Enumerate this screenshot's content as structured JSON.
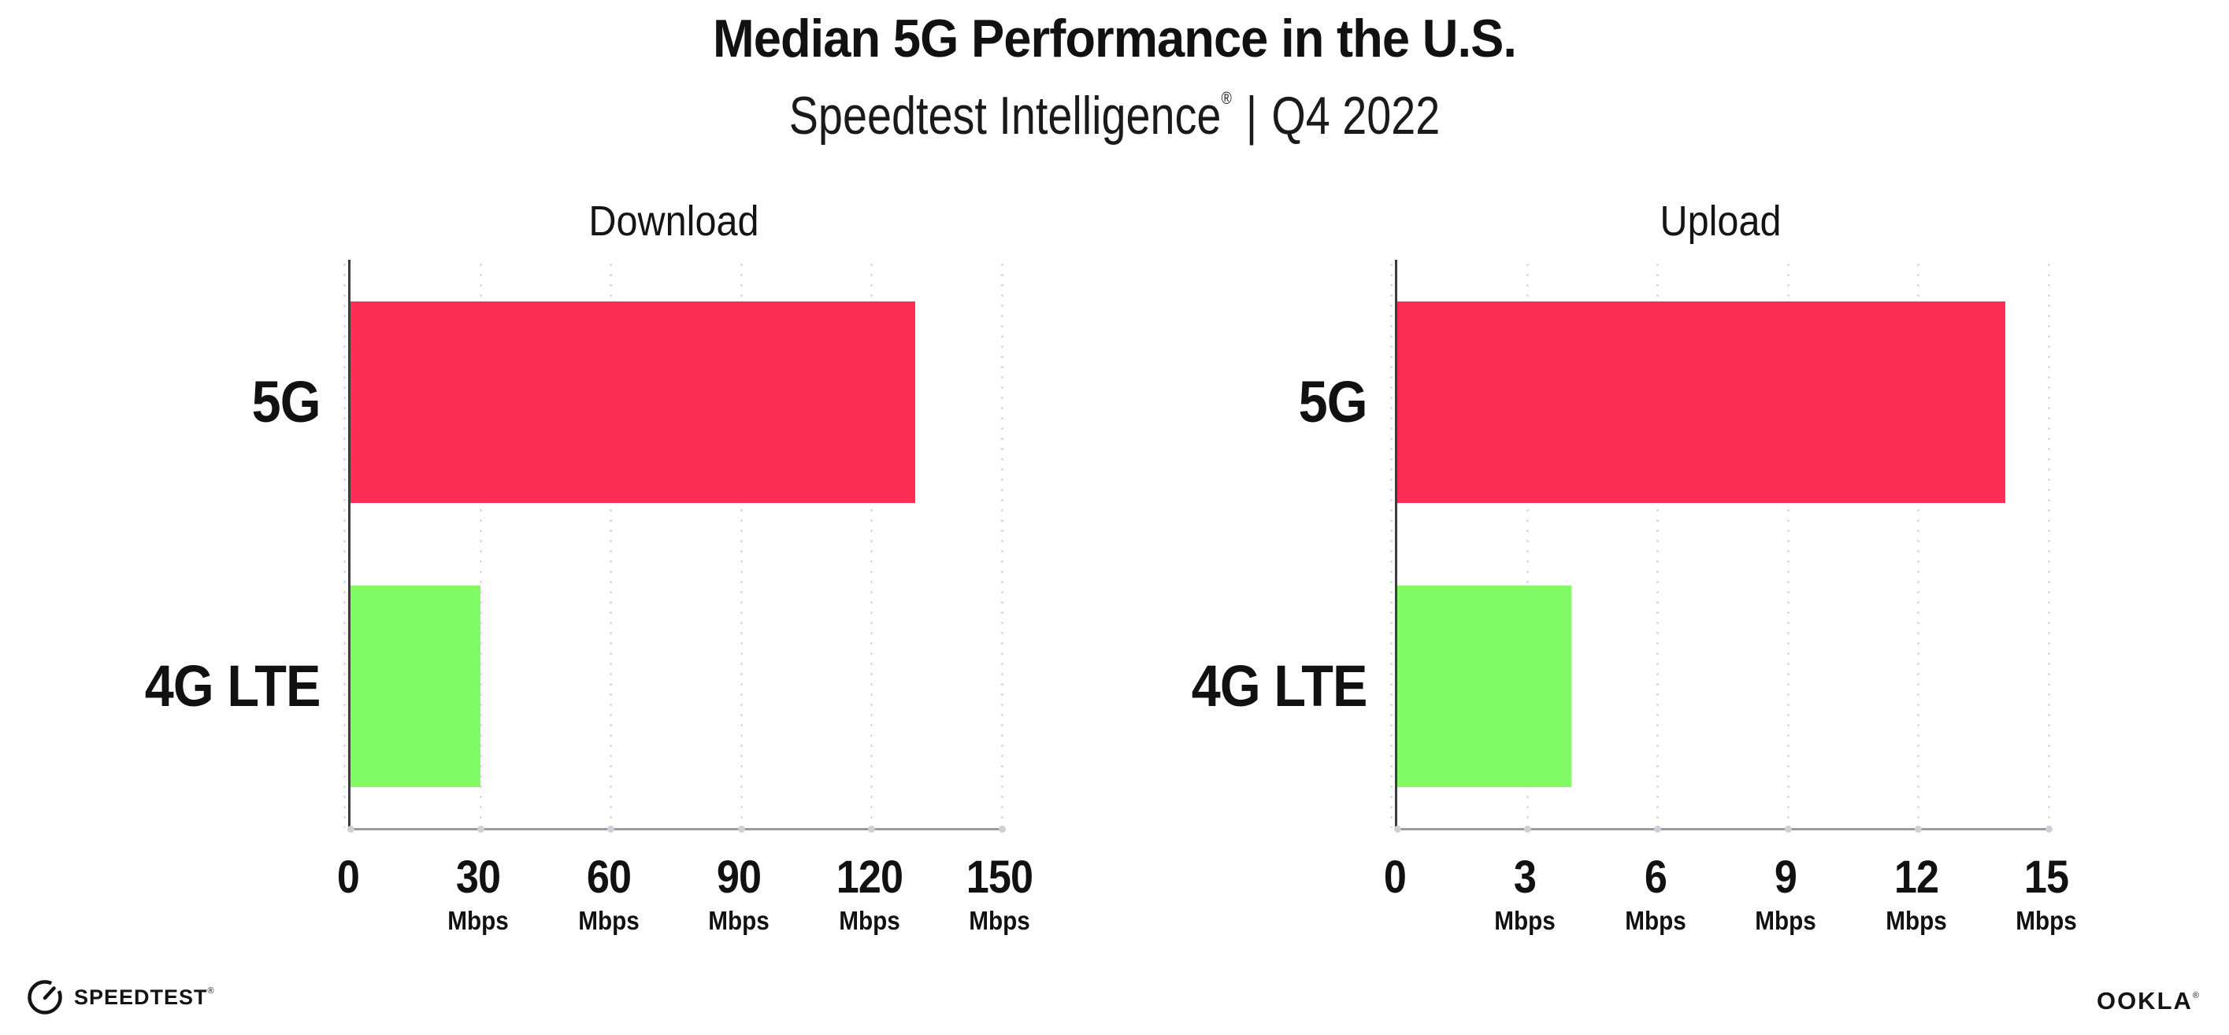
{
  "page": {
    "background": "#ffffff"
  },
  "header": {
    "title": "Median 5G Performance in the U.S.",
    "subtitle": {
      "brand": "Speedtest Intelligence",
      "registered_mark": "®",
      "separator": "|",
      "period": "Q4 2022"
    }
  },
  "chart_data": [
    {
      "type": "bar",
      "orientation": "horizontal",
      "title": "Download",
      "categories": [
        "5G",
        "4G LTE"
      ],
      "values": [
        130,
        30
      ],
      "value_unit": "Mbps",
      "bar_colors": [
        "#FD2E56",
        "#80FB66"
      ],
      "xlim": [
        0,
        150
      ],
      "xticks": [
        {
          "value": 0,
          "label": "0",
          "unit": ""
        },
        {
          "value": 30,
          "label": "30",
          "unit": "Mbps"
        },
        {
          "value": 60,
          "label": "60",
          "unit": "Mbps"
        },
        {
          "value": 90,
          "label": "90",
          "unit": "Mbps"
        },
        {
          "value": 120,
          "label": "120",
          "unit": "Mbps"
        },
        {
          "value": 150,
          "label": "150",
          "unit": "Mbps"
        }
      ],
      "grid": "vertical-dotted",
      "legend": "none"
    },
    {
      "type": "bar",
      "orientation": "horizontal",
      "title": "Upload",
      "categories": [
        "5G",
        "4G LTE"
      ],
      "values": [
        14,
        4
      ],
      "value_unit": "Mbps",
      "bar_colors": [
        "#FD2E56",
        "#80FB66"
      ],
      "xlim": [
        0,
        15
      ],
      "xticks": [
        {
          "value": 0,
          "label": "0",
          "unit": ""
        },
        {
          "value": 3,
          "label": "3",
          "unit": "Mbps"
        },
        {
          "value": 6,
          "label": "6",
          "unit": "Mbps"
        },
        {
          "value": 9,
          "label": "9",
          "unit": "Mbps"
        },
        {
          "value": 12,
          "label": "12",
          "unit": "Mbps"
        },
        {
          "value": 15,
          "label": "15",
          "unit": "Mbps"
        }
      ],
      "grid": "vertical-dotted",
      "legend": "none"
    }
  ],
  "colors": {
    "bar_5g": "#FD2E56",
    "bar_4g_lte": "#80FB66",
    "text": "#111111",
    "y_axis": "#3c3c3c",
    "x_axis": "#9b9b9b",
    "gridline_dot": "#dcdce6"
  },
  "footer": {
    "speedtest_wordmark": "SPEEDTEST",
    "speedtest_trademark": "®",
    "ookla_wordmark": "OOKLA",
    "ookla_trademark": "®"
  }
}
